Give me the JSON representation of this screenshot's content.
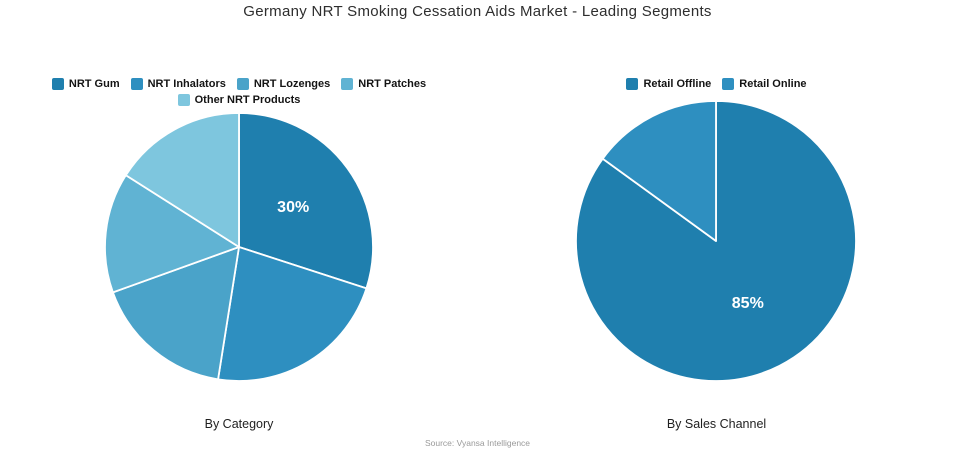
{
  "page": {
    "title": "Germany NRT Smoking Cessation Aids Market - Leading Segments",
    "source": "Source: Vyansa Intelligence",
    "background": "#ffffff"
  },
  "chart_data": [
    {
      "type": "pie",
      "title": "By Category",
      "labels": [
        "NRT Gum",
        "NRT Inhalators",
        "NRT Lozenges",
        "NRT Patches",
        "Other NRT Products"
      ],
      "values": [
        30,
        22.5,
        17,
        14.5,
        16
      ],
      "slice_labels": [
        "30%",
        "",
        "",
        "",
        ""
      ],
      "colors": [
        "#1f7fae",
        "#2e8fc0",
        "#4aa3c9",
        "#60b3d3",
        "#7ec6de"
      ],
      "start_angle_deg": 0,
      "direction": "clockwise",
      "slice_label_color": "#ffffff",
      "slice_border_color": "#ffffff",
      "legend_position": "top"
    },
    {
      "type": "pie",
      "title": "By Sales Channel",
      "labels": [
        "Retail Offline",
        "Retail Online"
      ],
      "values": [
        85,
        15
      ],
      "slice_labels": [
        "85%",
        ""
      ],
      "colors": [
        "#1f7fae",
        "#2e8fc0"
      ],
      "start_angle_deg": 0,
      "direction": "clockwise",
      "slice_label_color": "#ffffff",
      "slice_border_color": "#ffffff",
      "legend_position": "top"
    }
  ]
}
